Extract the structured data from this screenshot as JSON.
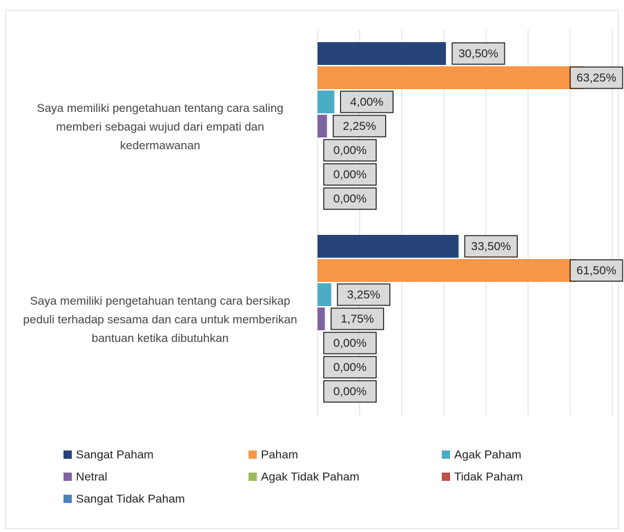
{
  "chart_data": {
    "type": "hbar",
    "categories": [
      "Saya memiliki pengetahuan tentang cara saling memberi sebagai wujud dari empati dan kedermawanan",
      "Saya memiliki pengetahuan tentang cara bersikap peduli terhadap sesama dan cara untuk memberikan bantuan ketika dibutuhkan"
    ],
    "series": [
      {
        "name": "Sangat Paham",
        "color": "#264478",
        "values": [
          30.5,
          33.5
        ],
        "value_labels": [
          "30,50%",
          "33,50%"
        ]
      },
      {
        "name": "Paham",
        "color": "#f79646",
        "values": [
          63.25,
          61.5
        ],
        "value_labels": [
          "63,25%",
          "61,50%"
        ]
      },
      {
        "name": "Agak Paham",
        "color": "#4bacc6",
        "values": [
          4,
          3.25
        ],
        "value_labels": [
          "4,00%",
          "3,25%"
        ]
      },
      {
        "name": "Netral",
        "color": "#8064a2",
        "values": [
          2.25,
          1.75
        ],
        "value_labels": [
          "2,25%",
          "1,75%"
        ]
      },
      {
        "name": "Agak Tidak Paham",
        "color": "#9bbb59",
        "values": [
          0,
          0
        ],
        "value_labels": [
          "0,00%",
          "0,00%"
        ]
      },
      {
        "name": "Tidak Paham",
        "color": "#c0504d",
        "values": [
          0,
          0
        ],
        "value_labels": [
          "0,00%",
          "0,00%"
        ]
      },
      {
        "name": "Sangat Tidak Paham",
        "color": "#4f81bd",
        "values": [
          0,
          0
        ],
        "value_labels": [
          "0,00%",
          "0,00%"
        ]
      }
    ],
    "xlim": [
      0,
      70
    ],
    "xticks": [
      0,
      10,
      20,
      30,
      40,
      50,
      60,
      70
    ],
    "grid": true
  }
}
